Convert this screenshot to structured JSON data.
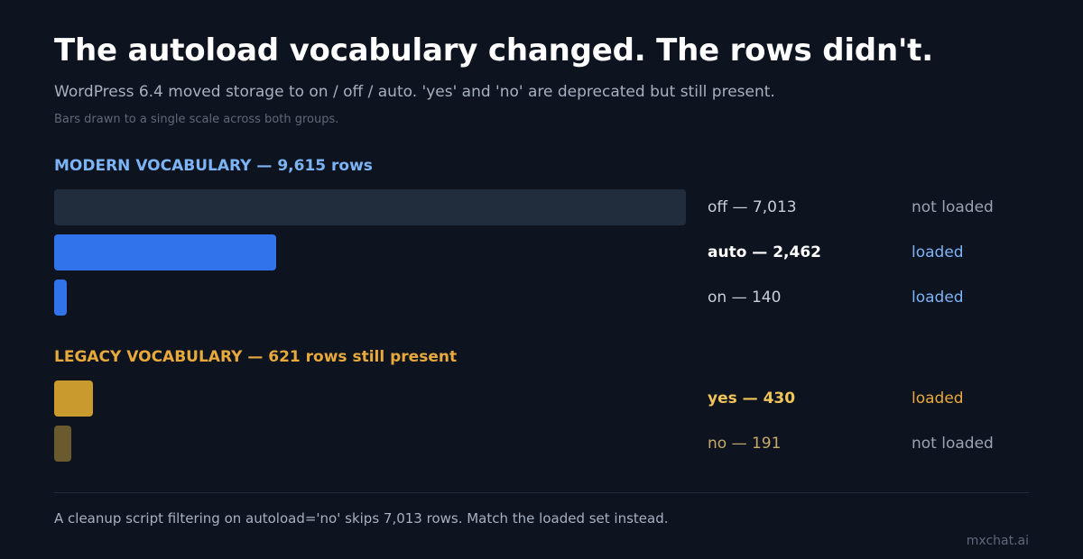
{
  "title": "The autoload vocabulary changed. The rows didn't.",
  "subtitle": "WordPress 6.4 moved storage to on / off / auto. 'yes' and 'no' are deprecated but still present.",
  "note": "Bars drawn to a single scale across both groups.",
  "footer": "A cleanup script filtering on autoload='no' skips 7,013 rows. Match the loaded set instead.",
  "brand": "mxchat.ai",
  "colors": {
    "off": "#212c3d",
    "auto": "#3173ea",
    "on": "#3173ea",
    "yes": "#c99a2e",
    "no": "#6b5a2e",
    "modern_label": "#7db4f5",
    "legacy_label": "#e8a93c",
    "loaded_modern": "#7db4f5",
    "loaded_legacy": "#e8a93c",
    "not_loaded": "#9aa3b2"
  },
  "chart_data": {
    "type": "bar",
    "orientation": "horizontal",
    "scale": "single scale across both groups",
    "groups": [
      {
        "label": "MODERN VOCABULARY — 9,615 rows",
        "rows": [
          {
            "key": "off",
            "value": 7013,
            "label": "off — 7,013",
            "status": "not loaded"
          },
          {
            "key": "auto",
            "value": 2462,
            "label": "auto — 2,462",
            "status": "loaded"
          },
          {
            "key": "on",
            "value": 140,
            "label": "on — 140",
            "status": "loaded"
          }
        ]
      },
      {
        "label": "LEGACY VOCABULARY — 621 rows still present",
        "rows": [
          {
            "key": "yes",
            "value": 430,
            "label": "yes — 430",
            "status": "loaded"
          },
          {
            "key": "no",
            "value": 191,
            "label": "no — 191",
            "status": "not loaded"
          }
        ]
      }
    ]
  }
}
